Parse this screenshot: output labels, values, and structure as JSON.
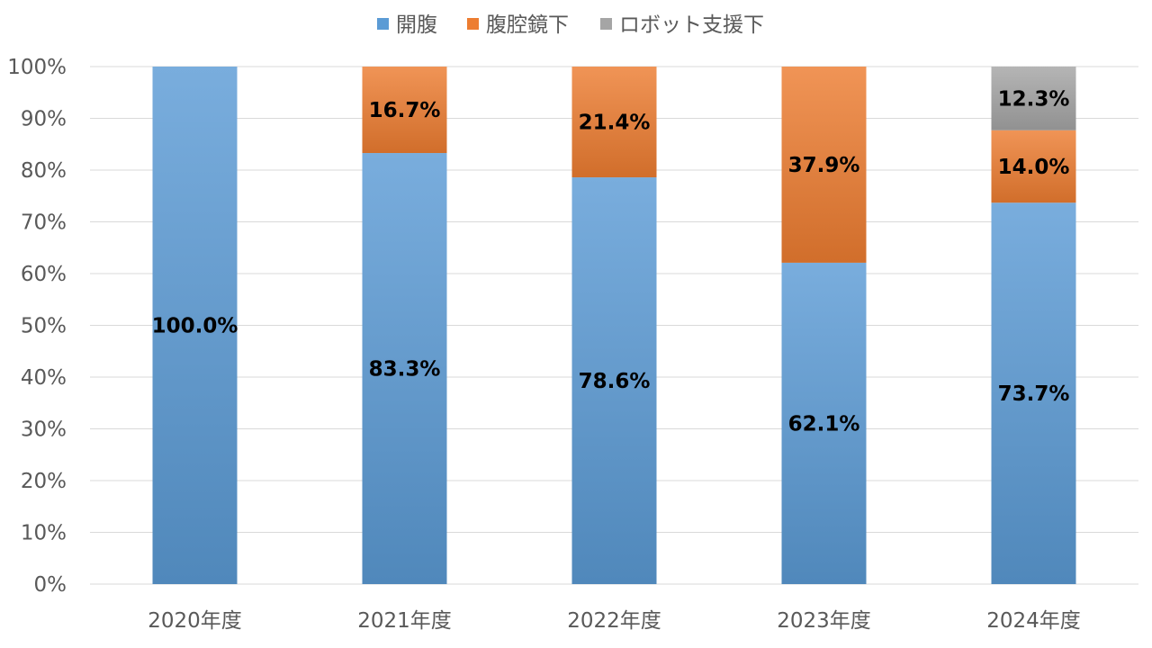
{
  "chart_data": {
    "type": "bar",
    "stacked": "percent",
    "categories": [
      "2020年度",
      "2021年度",
      "2022年度",
      "2023年度",
      "2024年度"
    ],
    "series": [
      {
        "name": "開腹",
        "color": "#5b9bd5",
        "values": [
          100.0,
          83.3,
          78.6,
          62.1,
          73.7
        ],
        "labels": [
          "100.0%",
          "83.3%",
          "78.6%",
          "62.1%",
          "73.7%"
        ]
      },
      {
        "name": "腹腔鏡下",
        "color": "#ed7d31",
        "values": [
          0,
          16.7,
          21.4,
          37.9,
          14.0
        ],
        "labels": [
          "",
          "16.7%",
          "21.4%",
          "37.9%",
          "14.0%"
        ]
      },
      {
        "name": "ロボット支援下",
        "color": "#a5a5a5",
        "values": [
          0,
          0,
          0,
          0,
          12.3
        ],
        "labels": [
          "",
          "",
          "",
          "",
          "12.3%"
        ]
      }
    ],
    "yticks": [
      "0%",
      "10%",
      "20%",
      "30%",
      "40%",
      "50%",
      "60%",
      "70%",
      "80%",
      "90%",
      "100%"
    ],
    "ylim": [
      0,
      100
    ],
    "grid": true,
    "legend": "top-center",
    "title": "",
    "xlabel": "",
    "ylabel": ""
  }
}
